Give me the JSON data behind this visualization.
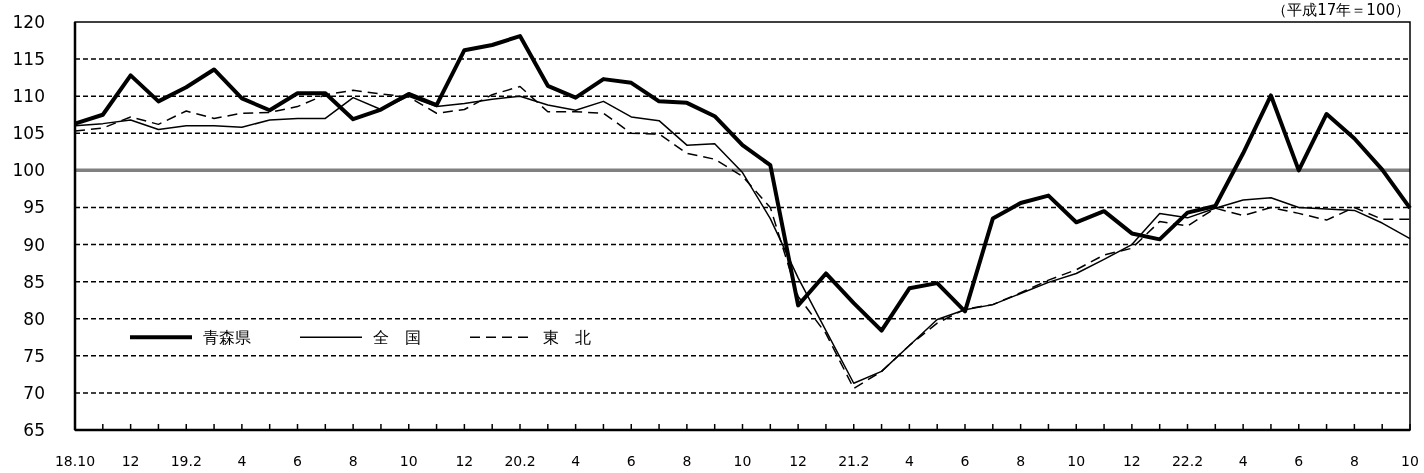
{
  "chart_data": {
    "type": "line",
    "categories": [
      "18.10",
      null,
      "12",
      null,
      "19.2",
      null,
      "4",
      null,
      "6",
      null,
      "8",
      null,
      "10",
      null,
      "12",
      null,
      "20.2",
      null,
      "4",
      null,
      "6",
      null,
      "8",
      null,
      "10",
      null,
      "12",
      null,
      "21.2",
      null,
      "4",
      null,
      "6",
      null,
      "8",
      null,
      "10",
      null,
      "12",
      null,
      "22.2",
      null,
      "4",
      null,
      "6",
      null,
      "8",
      null,
      "10"
    ],
    "series": [
      {
        "name": "青森県",
        "color": "#000000",
        "line_style": "solid",
        "values": [
          106.3,
          107.5,
          112.8,
          109.3,
          111.2,
          113.6,
          109.7,
          108.1,
          110.4,
          110.4,
          106.9,
          108.2,
          110.3,
          108.8,
          116.2,
          116.9,
          118.1,
          111.4,
          109.8,
          112.3,
          111.8,
          109.3,
          109.1,
          107.3,
          103.4,
          100.7,
          81.8,
          86.1,
          82.1,
          78.4,
          84.1,
          84.8,
          81.0,
          93.5,
          95.6,
          96.6,
          93.0,
          94.5,
          91.5,
          90.7,
          94.3,
          95.2,
          102.3,
          110.1,
          100.0,
          107.6,
          104.3,
          100.1,
          94.9
        ]
      },
      {
        "name": "全　国",
        "color": "#000000",
        "line_style": "solid",
        "values": [
          106.0,
          106.3,
          106.8,
          105.5,
          106.0,
          106.0,
          105.8,
          106.8,
          107.0,
          107.0,
          109.8,
          108.2,
          110.0,
          108.6,
          109.0,
          109.6,
          110.0,
          108.8,
          108.1,
          109.3,
          107.2,
          106.7,
          103.4,
          103.6,
          99.7,
          93.5,
          85.5,
          78.4,
          71.3,
          72.9,
          76.4,
          79.9,
          81.2,
          81.9,
          83.4,
          84.9,
          86.1,
          88.0,
          90.0,
          94.2,
          93.6,
          94.9,
          96.0,
          96.3,
          95.0,
          94.8,
          94.6,
          92.9,
          90.8
        ]
      },
      {
        "name": "東　北",
        "color": "#000000",
        "line_style": "dashed",
        "values": [
          105.3,
          105.7,
          107.2,
          106.2,
          108.0,
          107.0,
          107.7,
          107.8,
          108.6,
          110.2,
          110.8,
          110.3,
          109.9,
          107.7,
          108.2,
          110.2,
          111.3,
          107.9,
          107.9,
          107.7,
          105.0,
          104.9,
          102.3,
          101.5,
          99.2,
          95.0,
          83.0,
          78.0,
          70.6,
          72.9,
          76.4,
          79.4,
          81.3,
          81.9,
          83.5,
          85.2,
          86.6,
          88.6,
          89.5,
          93.1,
          92.5,
          94.9,
          93.9,
          95.0,
          94.2,
          93.3,
          95.0,
          93.4,
          93.4
        ]
      }
    ],
    "ylim": [
      65,
      120
    ],
    "yticks": [
      65,
      70,
      75,
      80,
      85,
      90,
      95,
      100,
      105,
      110,
      115,
      120
    ],
    "grid": "y",
    "legend": "bottom left",
    "ref_lines": [
      {
        "axis": "y",
        "value": 100,
        "color": "#808080"
      }
    ],
    "annotations": [
      "（平成17年＝100）"
    ]
  }
}
